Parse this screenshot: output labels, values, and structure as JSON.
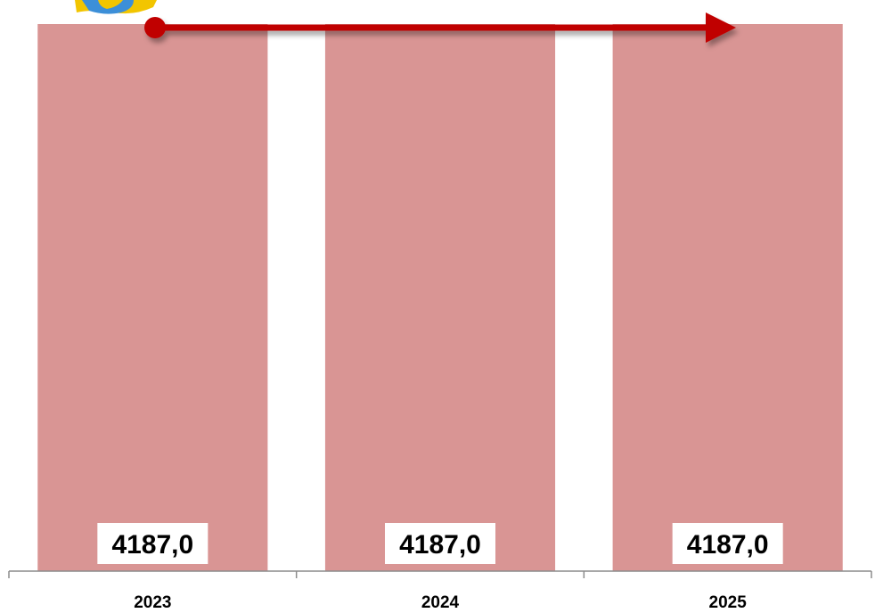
{
  "chart_data": {
    "type": "bar",
    "categories": [
      "2023",
      "2024",
      "2025"
    ],
    "values": [
      4187.0,
      4187.0,
      4187.0
    ],
    "data_labels": [
      "4187,0",
      "4187,0",
      "4187,0"
    ],
    "title": "",
    "xlabel": "",
    "ylabel": "",
    "ylim": [
      0,
      4187.0
    ],
    "grid": false,
    "legend": "none"
  },
  "colors": {
    "bar": "#d99594",
    "arrow": "#c00000",
    "axis": "#8c8c8c",
    "label_box": "#ffffff",
    "logo_yellow": "#f2c500",
    "logo_blue": "#3c8fd8"
  },
  "decorations": {
    "arrow_icon": "trend-arrow-icon",
    "logo_icon": "emblem-logo-icon"
  }
}
